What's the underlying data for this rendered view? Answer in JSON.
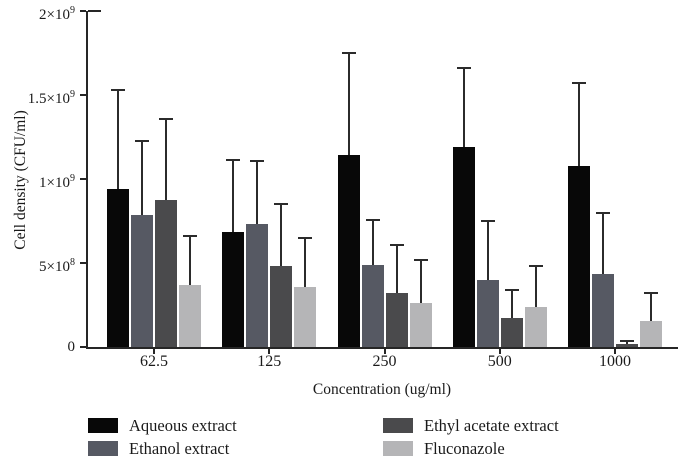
{
  "chart_data": {
    "type": "bar",
    "title": "",
    "xlabel": "Concentration (ug/ml)",
    "ylabel": "Cell density (CFU/ml)",
    "categories": [
      "62.5",
      "125",
      "250",
      "500",
      "1000"
    ],
    "ylim": [
      0,
      2000000000
    ],
    "grid": false,
    "legend_position": "bottom-two-columns",
    "axis_color": "#262626",
    "error_bar_color": "#2b2b2b",
    "yticks": [
      {
        "value": 0,
        "text": "0",
        "sup": ""
      },
      {
        "value": 500000000,
        "text": "5×10",
        "sup": "8"
      },
      {
        "value": 1000000000,
        "text": "1×10",
        "sup": "9"
      },
      {
        "value": 1500000000,
        "text": "1.5×10",
        "sup": "9"
      },
      {
        "value": 2000000000,
        "text": "2×10",
        "sup": "9"
      }
    ],
    "series": [
      {
        "name": "Aqueous extract",
        "color": "#080808",
        "values": [
          940000000,
          685000000,
          1140000000,
          1190000000,
          1080000000
        ],
        "errors_plus": [
          590000000,
          430000000,
          610000000,
          470000000,
          490000000
        ]
      },
      {
        "name": "Ethanol extract",
        "color": "#565963",
        "values": [
          785000000,
          730000000,
          490000000,
          400000000,
          435000000
        ],
        "errors_plus": [
          440000000,
          380000000,
          265000000,
          350000000,
          365000000
        ]
      },
      {
        "name": "Ethyl acetate extract",
        "color": "#4a4a4c",
        "values": [
          875000000,
          480000000,
          320000000,
          170000000,
          20000000
        ],
        "errors_plus": [
          480000000,
          370000000,
          290000000,
          170000000,
          15000000
        ]
      },
      {
        "name": "Fluconazole",
        "color": "#b5b5b7",
        "values": [
          370000000,
          355000000,
          260000000,
          240000000,
          155000000
        ],
        "errors_plus": [
          290000000,
          295000000,
          260000000,
          240000000,
          165000000
        ]
      }
    ]
  }
}
